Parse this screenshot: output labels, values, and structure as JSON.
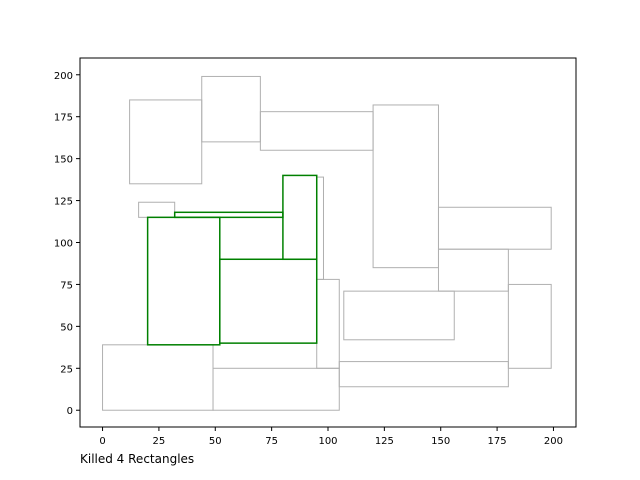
{
  "chart_data": {
    "type": "rectangles",
    "xlim": [
      -10,
      210
    ],
    "ylim": [
      -10,
      210
    ],
    "x_ticks": [
      0,
      25,
      50,
      75,
      100,
      125,
      150,
      175,
      200
    ],
    "y_ticks": [
      0,
      25,
      50,
      75,
      100,
      125,
      150,
      175,
      200
    ],
    "grid": false,
    "colors": {
      "gray": "#b0b0b0",
      "green": "#008000",
      "axis": "#000000"
    },
    "gray_rectangles": [
      {
        "x0": 0,
        "y0": 0,
        "x1": 49,
        "y1": 39
      },
      {
        "x0": 49,
        "y0": 0,
        "x1": 105,
        "y1": 25
      },
      {
        "x0": 95,
        "y0": 25,
        "x1": 105,
        "y1": 78
      },
      {
        "x0": 105,
        "y0": 14,
        "x1": 180,
        "y1": 29
      },
      {
        "x0": 107,
        "y0": 42,
        "x1": 156,
        "y1": 71
      },
      {
        "x0": 180,
        "y0": 25,
        "x1": 199,
        "y1": 75
      },
      {
        "x0": 149,
        "y0": 71,
        "x1": 180,
        "y1": 96
      },
      {
        "x0": 149,
        "y0": 96,
        "x1": 199,
        "y1": 121
      },
      {
        "x0": 120,
        "y0": 85,
        "x1": 149,
        "y1": 182
      },
      {
        "x0": 70,
        "y0": 155,
        "x1": 120,
        "y1": 178
      },
      {
        "x0": 44,
        "y0": 160,
        "x1": 70,
        "y1": 199
      },
      {
        "x0": 12,
        "y0": 135,
        "x1": 44,
        "y1": 185
      },
      {
        "x0": 16,
        "y0": 115,
        "x1": 32,
        "y1": 124
      },
      {
        "x0": 95,
        "y0": 78,
        "x1": 98,
        "y1": 139
      }
    ],
    "green_rectangles": [
      {
        "x0": 20,
        "y0": 39,
        "x1": 52,
        "y1": 115
      },
      {
        "x0": 52,
        "y0": 40,
        "x1": 95,
        "y1": 90
      },
      {
        "x0": 80,
        "y0": 90,
        "x1": 95,
        "y1": 140
      },
      {
        "x0": 32,
        "y0": 115,
        "x1": 80,
        "y1": 118
      }
    ],
    "caption": "Killed 4 Rectangles"
  }
}
